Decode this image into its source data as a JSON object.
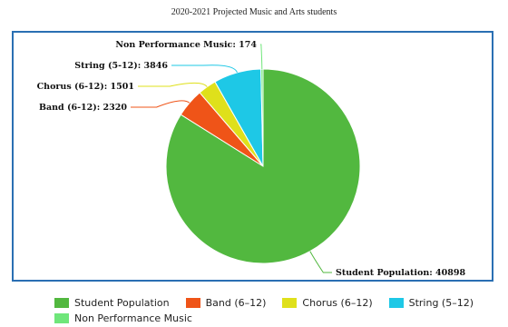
{
  "chart_data": {
    "type": "pie",
    "title": "2020-2021 Projected Music and Arts students",
    "slices": [
      {
        "name": "Student Population",
        "value": 40898,
        "color": "#52b83f",
        "callout": "Student Population: 40898"
      },
      {
        "name": "Band (6-12)",
        "value": 2320,
        "color": "#ef5418",
        "callout": "Band (6-12): 2320"
      },
      {
        "name": "Chorus (6-12)",
        "value": 1501,
        "color": "#dfe01b",
        "callout": "Chorus (6-12): 1501"
      },
      {
        "name": "String (5-12)",
        "value": 3846,
        "color": "#1ec8e6",
        "callout": "String (5-12): 3846"
      },
      {
        "name": "Non Performance Music",
        "value": 174,
        "color": "#6fe67a",
        "callout": "Non Performance Music: 174"
      }
    ],
    "legend_position": "bottom",
    "legend_rows": [
      [
        {
          "label": "Student Population",
          "color": "#52b83f"
        },
        {
          "label": "Band (6–12)",
          "color": "#ef5418"
        },
        {
          "label": "Chorus (6–12)",
          "color": "#dfe01b"
        },
        {
          "label": "String (5–12)",
          "color": "#1ec8e6"
        }
      ],
      [
        {
          "label": "Non Performance Music",
          "color": "#6fe67a"
        }
      ]
    ]
  }
}
